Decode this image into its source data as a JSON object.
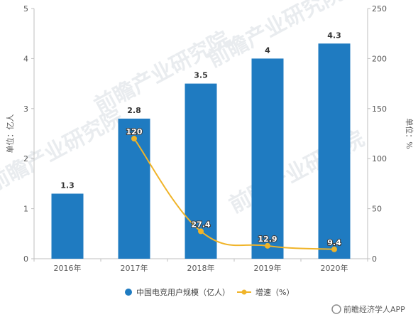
{
  "chart_data": {
    "type": "bar",
    "categories": [
      "2016年",
      "2017年",
      "2018年",
      "2019年",
      "2020年"
    ],
    "series": [
      {
        "name": "中国电竞用户规模（亿人）",
        "kind": "bar",
        "axis": "left",
        "values": [
          1.3,
          2.8,
          3.5,
          4,
          4.3
        ],
        "color": "#1f7bc1"
      },
      {
        "name": "增速（%）",
        "kind": "line",
        "axis": "right",
        "values": [
          null,
          120,
          27.4,
          12.9,
          9.4
        ],
        "color": "#f0b429"
      }
    ],
    "bar_labels": [
      "1.3",
      "2.8",
      "3.5",
      "4",
      "4.3"
    ],
    "line_labels": [
      "",
      "120",
      "27.4",
      "12.9",
      "9.4"
    ],
    "ylabel": "单位：亿人",
    "y2label": "单位：%",
    "ylim": [
      0,
      5
    ],
    "y2lim": [
      0,
      250
    ],
    "yticks": [
      "0",
      "1",
      "2",
      "3",
      "4",
      "5"
    ],
    "y2ticks": [
      "0",
      "50",
      "100",
      "150",
      "200",
      "250"
    ],
    "grid": false,
    "legend_position": "bottom"
  },
  "watermark": "前瞻产业研究院",
  "footer": "前瞻经济学人APP"
}
